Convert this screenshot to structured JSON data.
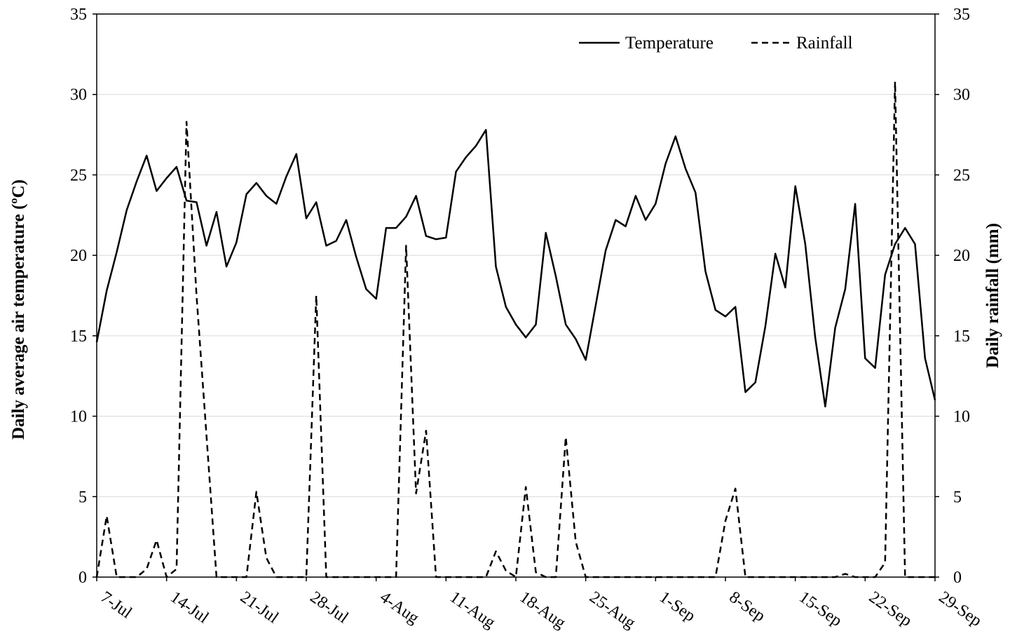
{
  "chart_data": {
    "type": "line",
    "title": "",
    "xlabel": "",
    "y_left": {
      "label": "Daily average air temperature (ºC)",
      "range": [
        0,
        35
      ],
      "ticks": [
        0,
        5,
        10,
        15,
        20,
        25,
        30,
        35
      ]
    },
    "y_right": {
      "label": "Daily rainfall (mm)",
      "range": [
        0,
        35
      ],
      "ticks": [
        0,
        5,
        10,
        15,
        20,
        25,
        30,
        35
      ]
    },
    "x_ticks": [
      "7-Jul",
      "14-Jul",
      "21-Jul",
      "28-Jul",
      "4-Aug",
      "11-Aug",
      "18-Aug",
      "25-Aug",
      "1-Sep",
      "8-Sep",
      "15-Sep",
      "22-Sep",
      "29-Sep"
    ],
    "x_range": [
      "7-Jul",
      "29-Sep"
    ],
    "grid": "horizontal",
    "legend": "top-right",
    "colors": {
      "lines": "#000000",
      "grid": "#d9d9d9"
    },
    "series": [
      {
        "name": "Temperature",
        "axis": "left",
        "style": "solid",
        "values": [
          14.6,
          17.8,
          20.2,
          22.8,
          24.6,
          26.2,
          24.0,
          24.8,
          25.5,
          23.4,
          23.3,
          20.6,
          22.7,
          19.3,
          20.8,
          23.8,
          24.5,
          23.7,
          23.2,
          24.9,
          26.3,
          22.3,
          23.3,
          20.6,
          20.9,
          22.2,
          19.9,
          17.9,
          17.3,
          21.7,
          21.7,
          22.4,
          23.7,
          21.2,
          21.0,
          21.1,
          25.2,
          26.1,
          26.8,
          27.8,
          19.3,
          16.8,
          15.7,
          14.9,
          15.7,
          21.4,
          18.7,
          15.7,
          14.8,
          13.5,
          16.9,
          20.3,
          22.2,
          21.8,
          23.7,
          22.2,
          23.2,
          25.7,
          27.4,
          25.4,
          23.9,
          19.0,
          16.6,
          16.2,
          16.8,
          11.5,
          12.1,
          15.6,
          20.1,
          18.0,
          24.3,
          20.7,
          14.9,
          10.6,
          15.5,
          17.9,
          23.2,
          13.6,
          13.0,
          18.8,
          20.7,
          21.7,
          20.7,
          13.6,
          11.0
        ]
      },
      {
        "name": "Rainfall",
        "axis": "right",
        "style": "dashed",
        "values": [
          0,
          3.8,
          0,
          0,
          0,
          0.5,
          2.3,
          0,
          0.5,
          28.3,
          17.5,
          8.8,
          0,
          0,
          0,
          0,
          5.3,
          1.2,
          0,
          0,
          0,
          0,
          17.5,
          0,
          0,
          0,
          0,
          0,
          0,
          0,
          0,
          20.6,
          5.2,
          9.1,
          0,
          0,
          0,
          0,
          0,
          0,
          1.6,
          0.4,
          0,
          5.6,
          0.3,
          0,
          0,
          8.7,
          2.2,
          0,
          0,
          0,
          0,
          0,
          0,
          0,
          0,
          0,
          0,
          0,
          0,
          0,
          0,
          3.5,
          5.5,
          0,
          0,
          0,
          0,
          0,
          0,
          0,
          0,
          0,
          0,
          0.2,
          0,
          0,
          0,
          0.9,
          30.8,
          0,
          0,
          0,
          0
        ]
      }
    ]
  }
}
